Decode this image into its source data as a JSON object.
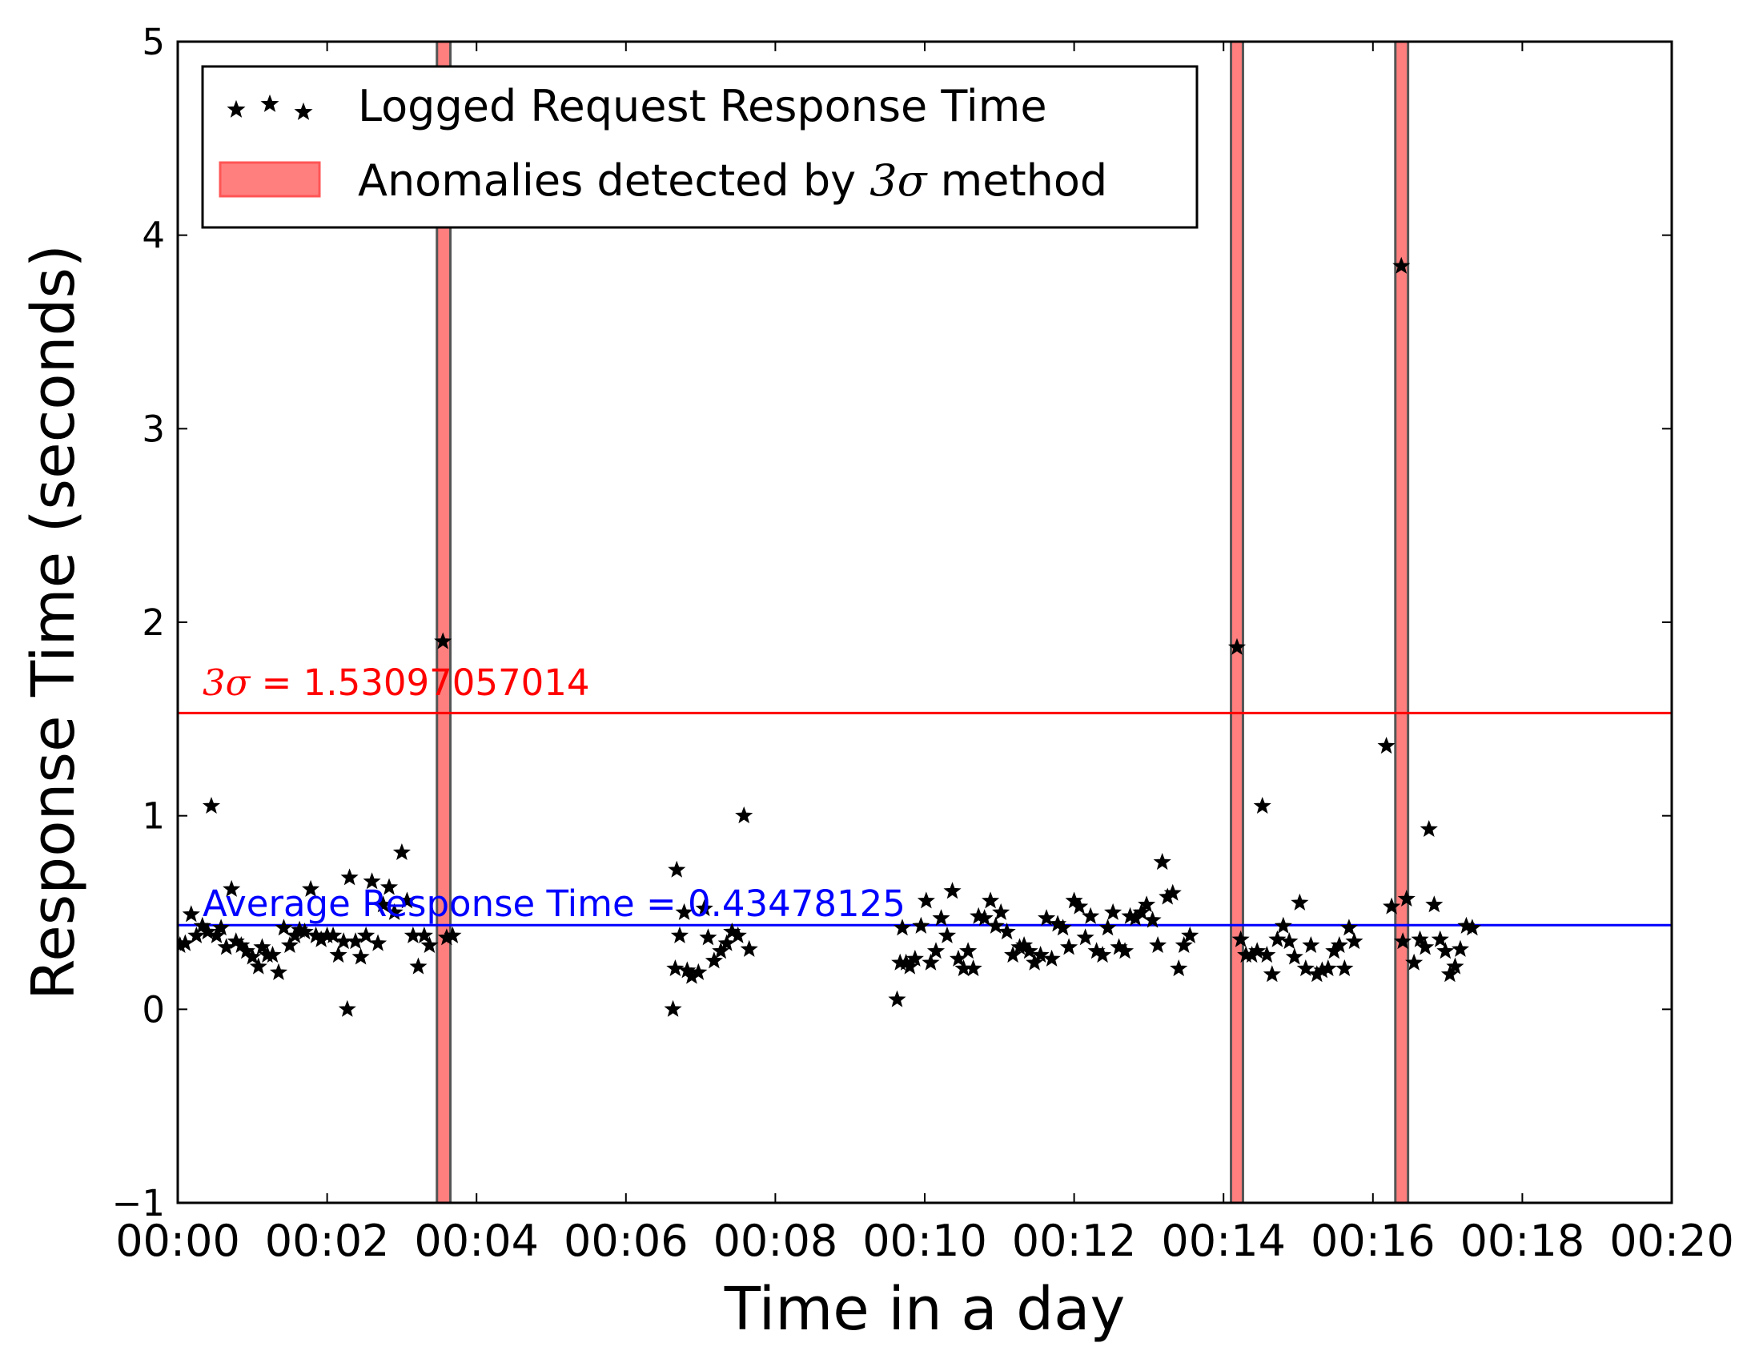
{
  "chart_data": {
    "type": "scatter",
    "title": "",
    "xlabel": "Time in a day",
    "ylabel": "Response Time (seconds)",
    "x_unit": "minutes",
    "xlim": [
      0,
      20
    ],
    "ylim": [
      -1,
      5
    ],
    "x_ticks": [
      {
        "value": 0,
        "label": "00:00"
      },
      {
        "value": 2,
        "label": "00:02"
      },
      {
        "value": 4,
        "label": "00:04"
      },
      {
        "value": 6,
        "label": "00:06"
      },
      {
        "value": 8,
        "label": "00:08"
      },
      {
        "value": 10,
        "label": "00:10"
      },
      {
        "value": 12,
        "label": "00:12"
      },
      {
        "value": 14,
        "label": "00:14"
      },
      {
        "value": 16,
        "label": "00:16"
      },
      {
        "value": 18,
        "label": "00:18"
      },
      {
        "value": 20,
        "label": "00:20"
      }
    ],
    "y_ticks": [
      {
        "value": -1,
        "label": "−1"
      },
      {
        "value": 0,
        "label": "0"
      },
      {
        "value": 1,
        "label": "1"
      },
      {
        "value": 2,
        "label": "2"
      },
      {
        "value": 3,
        "label": "3"
      },
      {
        "value": 4,
        "label": "4"
      },
      {
        "value": 5,
        "label": "5"
      }
    ],
    "grid": false,
    "legend_position": "top-left",
    "legend": {
      "scatter_label": "Logged Request Response Time",
      "anomaly_label_prefix": "Anomalies detected by ",
      "anomaly_label_symbol": "3σ",
      "anomaly_label_suffix": " method"
    },
    "reference_lines": [
      {
        "name": "three_sigma",
        "y": 1.53097057014,
        "color": "#ff0000",
        "label_symbol": "3σ",
        "label_text": " = 1.53097057014"
      },
      {
        "name": "average",
        "y": 0.43478125,
        "color": "#0000ff",
        "label_symbol": "",
        "label_text": "Average Response Time = 0.43478125"
      }
    ],
    "anomaly_bands": [
      {
        "x_start": 3.47,
        "x_end": 3.65
      },
      {
        "x_start": 14.1,
        "x_end": 14.26
      },
      {
        "x_start": 16.3,
        "x_end": 16.47
      }
    ],
    "colors": {
      "points": "#000000",
      "band_fill": "#ff7f7f",
      "band_edge": "#555555",
      "axes": "#000000"
    },
    "series": [
      {
        "marker": "star",
        "points": [
          [
            0.03,
            0.33
          ],
          [
            0.1,
            0.34
          ],
          [
            0.18,
            0.49
          ],
          [
            0.25,
            0.38
          ],
          [
            0.33,
            0.43
          ],
          [
            0.4,
            0.4
          ],
          [
            0.45,
            1.05
          ],
          [
            0.52,
            0.38
          ],
          [
            0.58,
            0.42
          ],
          [
            0.65,
            0.32
          ],
          [
            0.72,
            0.62
          ],
          [
            0.78,
            0.35
          ],
          [
            0.85,
            0.33
          ],
          [
            0.92,
            0.3
          ],
          [
            1.0,
            0.27
          ],
          [
            1.08,
            0.22
          ],
          [
            1.13,
            0.32
          ],
          [
            1.2,
            0.28
          ],
          [
            1.27,
            0.28
          ],
          [
            1.35,
            0.19
          ],
          [
            1.42,
            0.42
          ],
          [
            1.5,
            0.33
          ],
          [
            1.57,
            0.38
          ],
          [
            1.63,
            0.41
          ],
          [
            1.7,
            0.4
          ],
          [
            1.78,
            0.62
          ],
          [
            1.85,
            0.38
          ],
          [
            1.92,
            0.36
          ],
          [
            2.0,
            0.38
          ],
          [
            2.08,
            0.38
          ],
          [
            2.15,
            0.28
          ],
          [
            2.22,
            0.35
          ],
          [
            2.27,
            0.0
          ],
          [
            2.3,
            0.68
          ],
          [
            2.38,
            0.35
          ],
          [
            2.45,
            0.27
          ],
          [
            2.52,
            0.38
          ],
          [
            2.6,
            0.66
          ],
          [
            2.68,
            0.34
          ],
          [
            2.75,
            0.54
          ],
          [
            2.83,
            0.63
          ],
          [
            2.9,
            0.5
          ],
          [
            3.0,
            0.81
          ],
          [
            3.07,
            0.56
          ],
          [
            3.15,
            0.38
          ],
          [
            3.22,
            0.22
          ],
          [
            3.3,
            0.38
          ],
          [
            3.37,
            0.33
          ],
          [
            3.55,
            1.9
          ],
          [
            3.6,
            0.37
          ],
          [
            3.68,
            0.38
          ],
          [
            6.63,
            0.0
          ],
          [
            6.66,
            0.21
          ],
          [
            6.68,
            0.72
          ],
          [
            6.72,
            0.38
          ],
          [
            6.78,
            0.5
          ],
          [
            6.82,
            0.2
          ],
          [
            6.88,
            0.17
          ],
          [
            6.97,
            0.19
          ],
          [
            7.05,
            0.52
          ],
          [
            7.1,
            0.37
          ],
          [
            7.18,
            0.25
          ],
          [
            7.27,
            0.3
          ],
          [
            7.35,
            0.34
          ],
          [
            7.42,
            0.4
          ],
          [
            7.5,
            0.38
          ],
          [
            7.58,
            1.0
          ],
          [
            7.65,
            0.31
          ],
          [
            9.63,
            0.05
          ],
          [
            9.67,
            0.24
          ],
          [
            9.7,
            0.42
          ],
          [
            9.75,
            0.24
          ],
          [
            9.8,
            0.22
          ],
          [
            9.87,
            0.26
          ],
          [
            9.95,
            0.43
          ],
          [
            10.02,
            0.56
          ],
          [
            10.08,
            0.24
          ],
          [
            10.15,
            0.3
          ],
          [
            10.22,
            0.47
          ],
          [
            10.3,
            0.38
          ],
          [
            10.37,
            0.61
          ],
          [
            10.45,
            0.26
          ],
          [
            10.52,
            0.21
          ],
          [
            10.58,
            0.3
          ],
          [
            10.65,
            0.21
          ],
          [
            10.72,
            0.48
          ],
          [
            10.8,
            0.47
          ],
          [
            10.88,
            0.56
          ],
          [
            10.95,
            0.43
          ],
          [
            11.02,
            0.5
          ],
          [
            11.1,
            0.4
          ],
          [
            11.18,
            0.28
          ],
          [
            11.27,
            0.32
          ],
          [
            11.33,
            0.33
          ],
          [
            11.4,
            0.3
          ],
          [
            11.47,
            0.24
          ],
          [
            11.55,
            0.28
          ],
          [
            11.63,
            0.47
          ],
          [
            11.7,
            0.26
          ],
          [
            11.78,
            0.44
          ],
          [
            11.85,
            0.42
          ],
          [
            11.93,
            0.32
          ],
          [
            12.0,
            0.56
          ],
          [
            12.07,
            0.53
          ],
          [
            12.15,
            0.37
          ],
          [
            12.22,
            0.48
          ],
          [
            12.3,
            0.3
          ],
          [
            12.38,
            0.28
          ],
          [
            12.45,
            0.42
          ],
          [
            12.52,
            0.5
          ],
          [
            12.6,
            0.32
          ],
          [
            12.68,
            0.3
          ],
          [
            12.75,
            0.48
          ],
          [
            12.82,
            0.47
          ],
          [
            12.9,
            0.5
          ],
          [
            12.97,
            0.54
          ],
          [
            13.05,
            0.46
          ],
          [
            13.12,
            0.33
          ],
          [
            13.18,
            0.76
          ],
          [
            13.25,
            0.58
          ],
          [
            13.32,
            0.6
          ],
          [
            13.4,
            0.21
          ],
          [
            13.47,
            0.33
          ],
          [
            13.55,
            0.38
          ],
          [
            14.18,
            1.87
          ],
          [
            14.23,
            0.36
          ],
          [
            14.3,
            0.28
          ],
          [
            14.38,
            0.28
          ],
          [
            14.45,
            0.3
          ],
          [
            14.52,
            1.05
          ],
          [
            14.58,
            0.28
          ],
          [
            14.65,
            0.18
          ],
          [
            14.72,
            0.36
          ],
          [
            14.8,
            0.43
          ],
          [
            14.88,
            0.35
          ],
          [
            14.95,
            0.27
          ],
          [
            15.02,
            0.55
          ],
          [
            15.1,
            0.21
          ],
          [
            15.17,
            0.33
          ],
          [
            15.25,
            0.18
          ],
          [
            15.32,
            0.2
          ],
          [
            15.4,
            0.21
          ],
          [
            15.48,
            0.3
          ],
          [
            15.55,
            0.33
          ],
          [
            15.62,
            0.21
          ],
          [
            15.68,
            0.42
          ],
          [
            15.75,
            0.35
          ],
          [
            16.18,
            1.36
          ],
          [
            16.25,
            0.53
          ],
          [
            16.38,
            3.84
          ],
          [
            16.4,
            0.35
          ],
          [
            16.45,
            0.57
          ],
          [
            16.55,
            0.24
          ],
          [
            16.63,
            0.36
          ],
          [
            16.7,
            0.32
          ],
          [
            16.75,
            0.93
          ],
          [
            16.82,
            0.54
          ],
          [
            16.9,
            0.36
          ],
          [
            16.97,
            0.3
          ],
          [
            17.03,
            0.18
          ],
          [
            17.1,
            0.22
          ],
          [
            17.17,
            0.31
          ],
          [
            17.25,
            0.43
          ],
          [
            17.33,
            0.42
          ]
        ]
      }
    ]
  }
}
